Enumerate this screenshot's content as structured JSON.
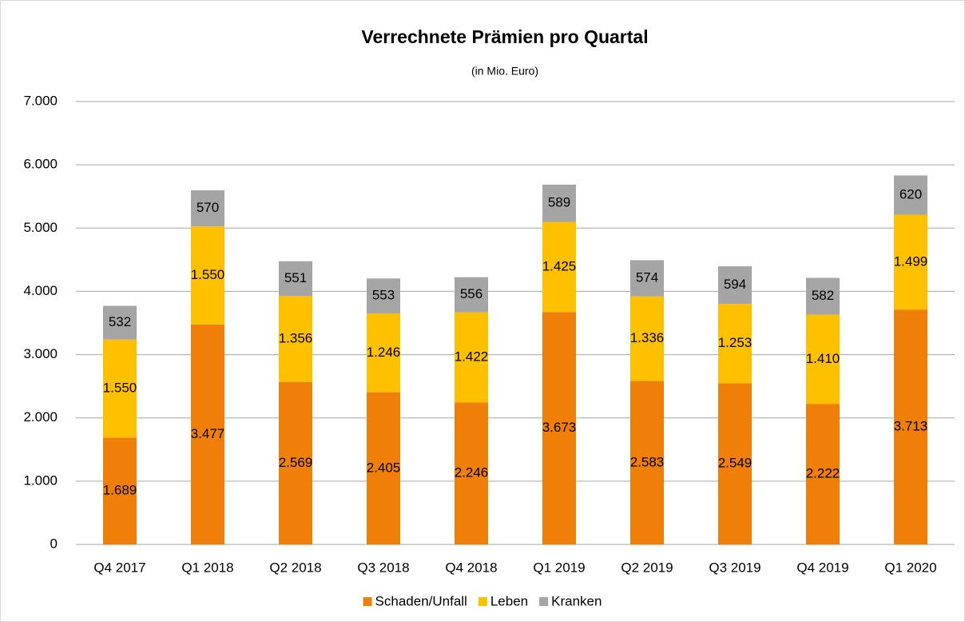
{
  "chart_data": {
    "type": "stacked_bar",
    "title": "Verrechnete Prämien pro Quartal",
    "subtitle": "(in Mio. Euro)",
    "categories": [
      "Q4 2017",
      "Q1 2018",
      "Q2 2018",
      "Q3 2018",
      "Q4 2018",
      "Q1 2019",
      "Q2 2019",
      "Q3 2019",
      "Q4 2019",
      "Q1 2020"
    ],
    "series": [
      {
        "name": "Schaden/Unfall",
        "color": "#f07f09",
        "values": [
          1689,
          3477,
          2569,
          2405,
          2246,
          3673,
          2583,
          2549,
          2222,
          3713
        ],
        "value_labels": [
          "1.689",
          "3.477",
          "2.569",
          "2.405",
          "2.246",
          "3.673",
          "2.583",
          "2.549",
          "2.222",
          "3.713"
        ]
      },
      {
        "name": "Leben",
        "color": "#ffc000",
        "values": [
          1550,
          1550,
          1356,
          1246,
          1422,
          1425,
          1336,
          1253,
          1410,
          1499
        ],
        "value_labels": [
          "1.550",
          "1.550",
          "1.356",
          "1.246",
          "1.422",
          "1.425",
          "1.336",
          "1.253",
          "1.410",
          "1.499"
        ]
      },
      {
        "name": "Kranken",
        "color": "#a5a5a5",
        "values": [
          532,
          570,
          551,
          553,
          556,
          589,
          574,
          594,
          582,
          620
        ]
      }
    ],
    "ylim": [
      0,
      7000
    ],
    "yticks": [
      0,
      {
        "value": 1000,
        "label": "1.000"
      },
      {
        "value": 2000,
        "label": "2.000"
      },
      {
        "value": 3000,
        "label": "3.000"
      },
      {
        "value": 4000,
        "label": "4.000"
      },
      {
        "value": 5000,
        "label": "5.000"
      },
      {
        "value": 6000,
        "label": "6.000"
      },
      {
        "value": 7000,
        "label": "7.000"
      }
    ],
    "grid": true,
    "legend": "bottom"
  }
}
